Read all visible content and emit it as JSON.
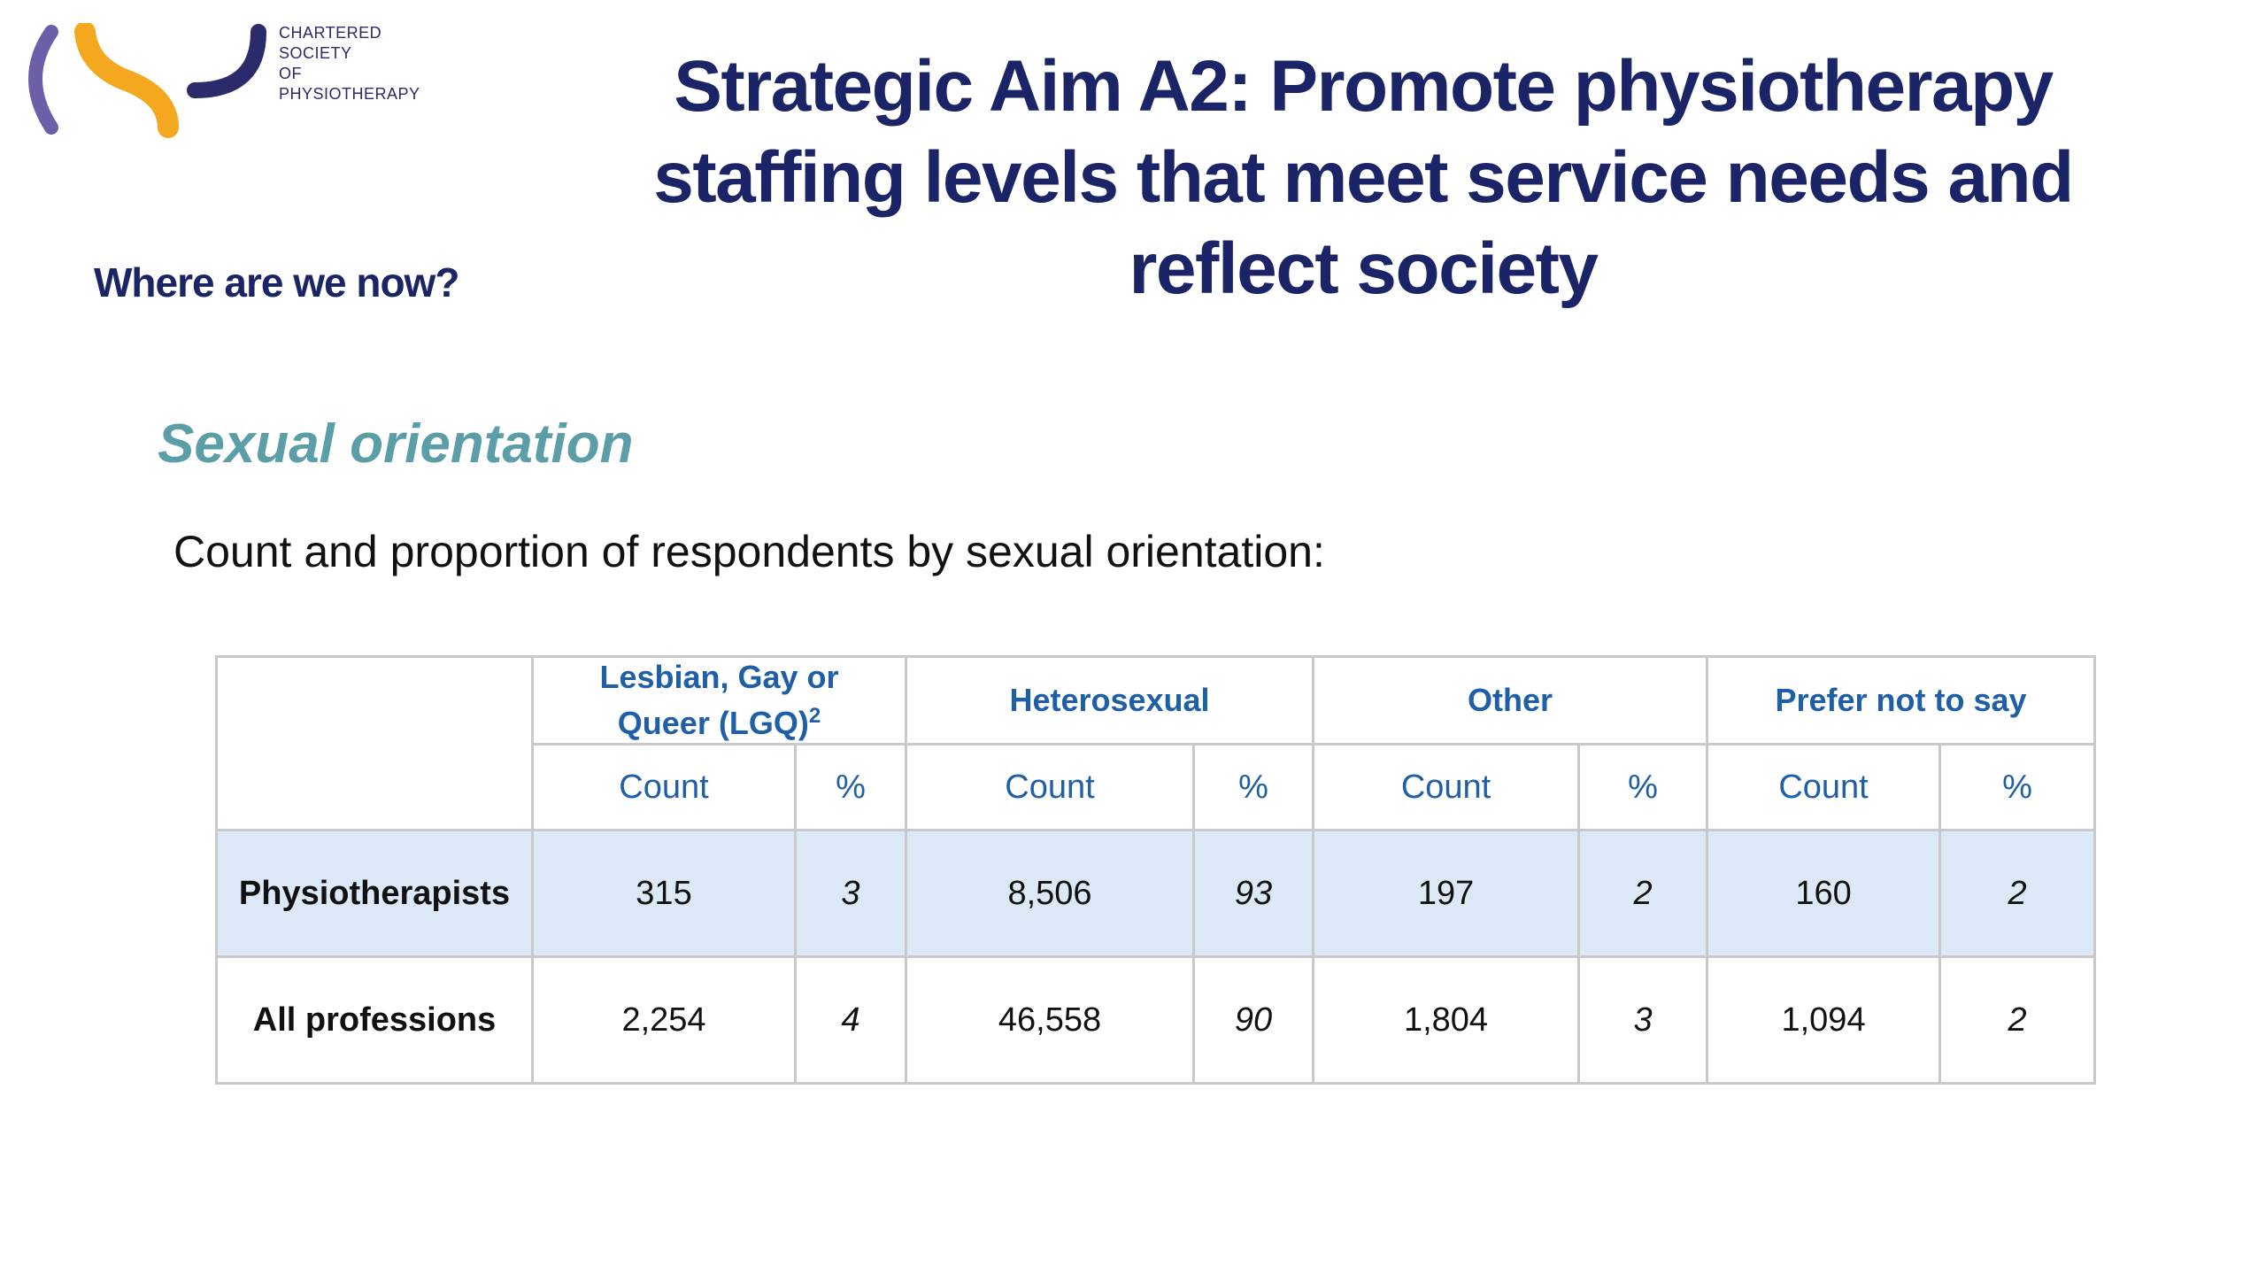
{
  "logo": {
    "icon_name": "csp-logo-icon",
    "lines": [
      "CHARTERED",
      "SOCIETY",
      "OF",
      "PHYSIOTHERAPY"
    ],
    "colors": {
      "purple": "#6d5ea8",
      "orange": "#f3a81f",
      "navy": "#2b2a6b"
    }
  },
  "title": "Strategic Aim A2: Promote physiotherapy staffing levels that meet service needs and reflect society",
  "title_lines": [
    "Strategic Aim A2: Promote physiotherapy",
    "staffing levels that meet service needs and",
    "reflect society"
  ],
  "subtitle": "Where are we now?",
  "section_heading": "Sexual orientation",
  "intro": "Count and proportion of respondents by sexual orientation:",
  "table": {
    "groups": [
      {
        "line1": "Lesbian, Gay or",
        "line2": "Queer (LGQ)",
        "sup": "2"
      },
      {
        "line1": "Heterosexual"
      },
      {
        "line1": "Other"
      },
      {
        "line1": "Prefer not to say"
      }
    ],
    "sub_headers": [
      "Count",
      "%",
      "Count",
      "%",
      "Count",
      "%",
      "Count",
      "%"
    ],
    "rows": [
      {
        "label": "Physiotherapists",
        "values": [
          "315",
          "3",
          "8,506",
          "93",
          "197",
          "2",
          "160",
          "2"
        ]
      },
      {
        "label": "All professions",
        "values": [
          "2,254",
          "4",
          "46,558",
          "90",
          "1,804",
          "3",
          "1,094",
          "2"
        ]
      }
    ]
  }
}
